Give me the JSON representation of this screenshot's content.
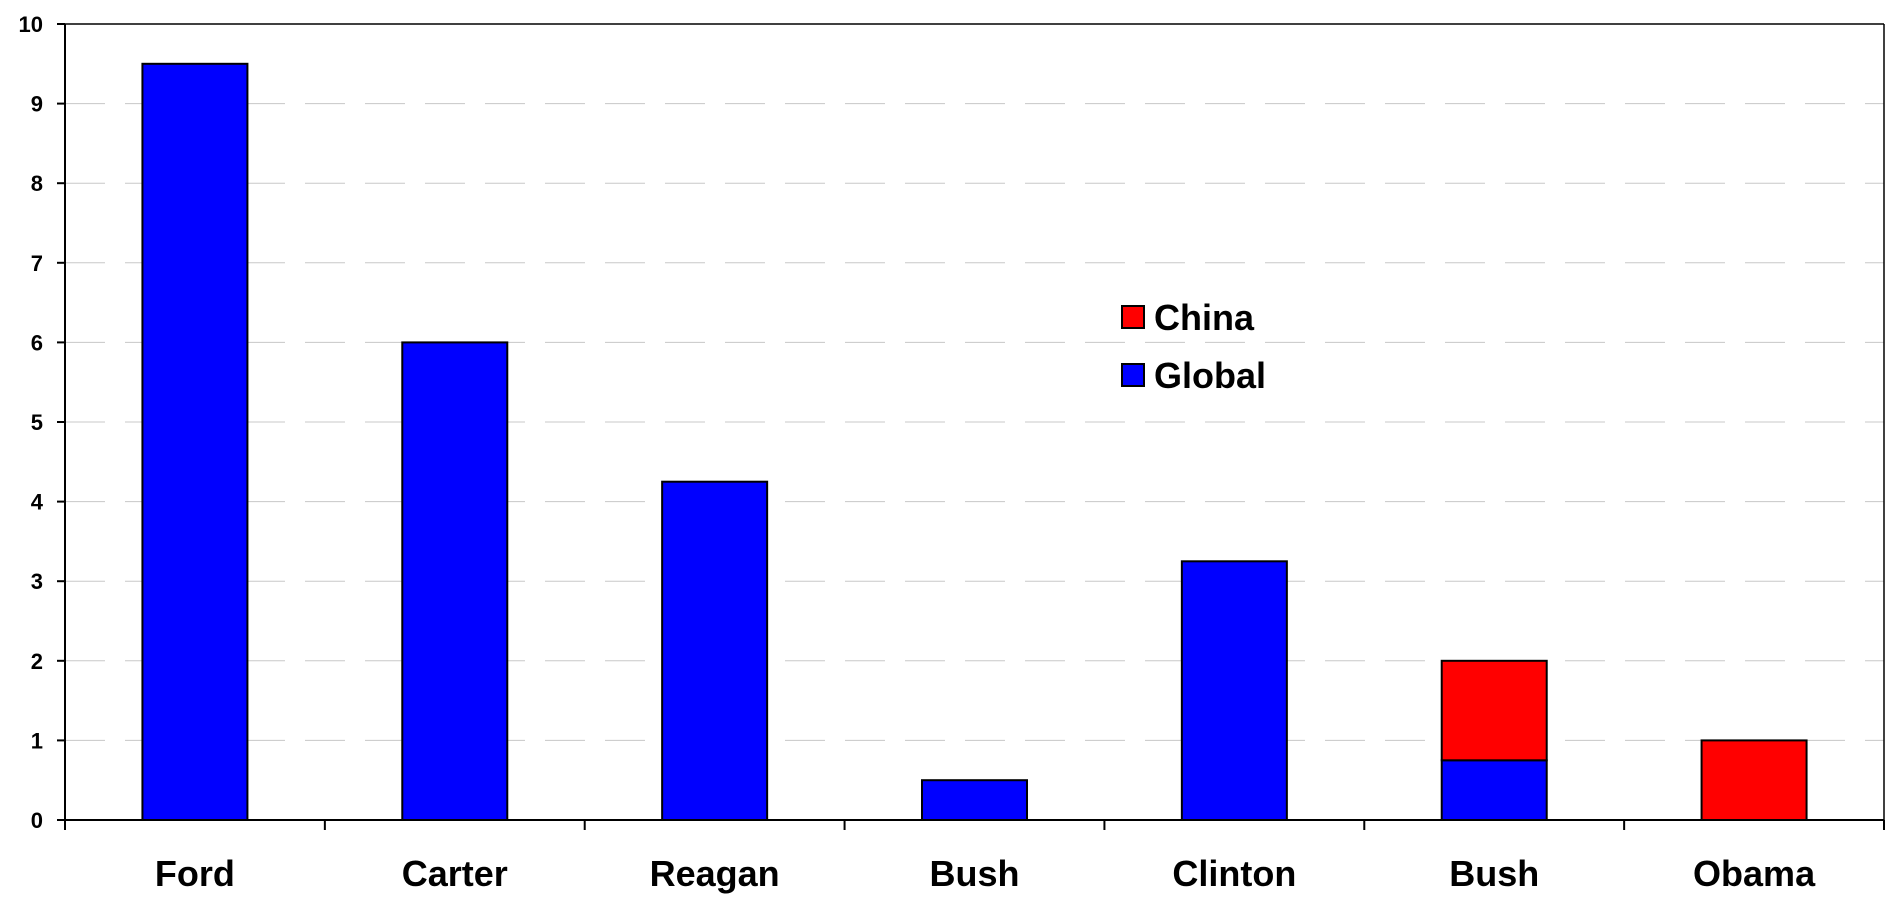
{
  "chart_data": {
    "type": "bar",
    "stacked": true,
    "categories": [
      "Ford",
      "Carter",
      "Reagan",
      "Bush",
      "Clinton",
      "Bush",
      "Obama"
    ],
    "series": [
      {
        "name": "Global",
        "color": "#0000ff",
        "values": [
          9.5,
          6.0,
          4.25,
          0.5,
          3.25,
          0.75,
          0
        ]
      },
      {
        "name": "China",
        "color": "#ff0000",
        "values": [
          0,
          0,
          0,
          0,
          0,
          1.25,
          1.0
        ]
      }
    ],
    "title": "",
    "xlabel": "",
    "ylabel": "",
    "ylim": [
      0,
      10
    ],
    "yticks": [
      0,
      1,
      2,
      3,
      4,
      5,
      6,
      7,
      8,
      9,
      10
    ],
    "grid": true,
    "grid_style": "dashed",
    "legend_placement": "center",
    "legend_order": [
      "China",
      "Global"
    ]
  }
}
